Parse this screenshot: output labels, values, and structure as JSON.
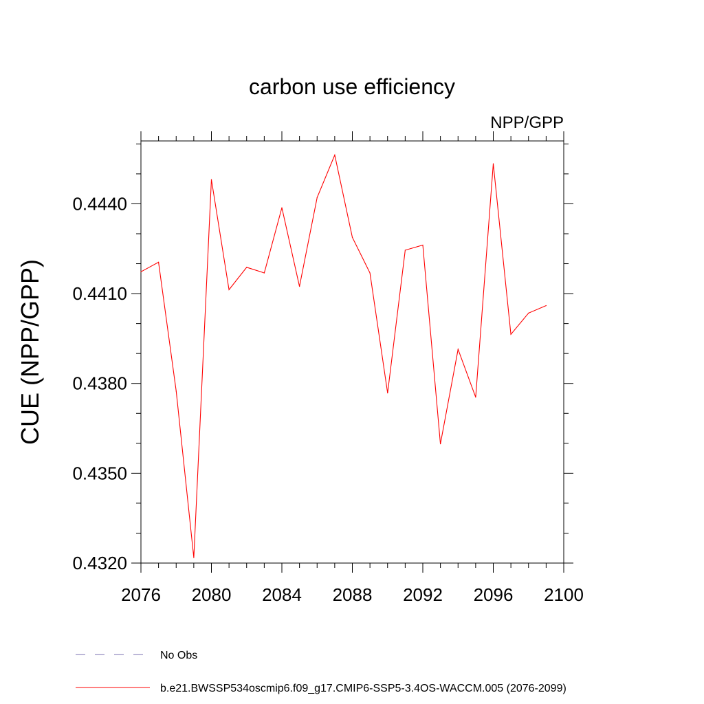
{
  "chart_data": {
    "type": "line",
    "title": "carbon use efficiency",
    "subtitle": "NPP/GPP",
    "xlabel": "",
    "ylabel": "CUE  (NPP/GPP)",
    "xlim": [
      2076,
      2100
    ],
    "ylim": [
      0.432,
      0.4461
    ],
    "x_ticks": [
      2076,
      2080,
      2084,
      2088,
      2092,
      2096,
      2100
    ],
    "x_tick_labels": [
      "2076",
      "2080",
      "2084",
      "2088",
      "2092",
      "2096",
      "2100"
    ],
    "y_ticks": [
      0.432,
      0.435,
      0.438,
      0.441,
      0.444
    ],
    "y_tick_labels": [
      "0.4320",
      "0.4350",
      "0.4380",
      "0.4410",
      "0.4440"
    ],
    "grid": false,
    "legend_position": "bottom",
    "series": [
      {
        "name": "b.e21.BWSSP534oscmip6.f09_g17.CMIP6-SSP5-3.4OS-WACCM.005 (2076-2099)",
        "color": "#ff0000",
        "style": "solid",
        "x": [
          2076,
          2077,
          2078,
          2079,
          2080,
          2081,
          2082,
          2083,
          2084,
          2085,
          2086,
          2087,
          2088,
          2089,
          2090,
          2091,
          2092,
          2093,
          2094,
          2095,
          2096,
          2097,
          2098,
          2099
        ],
        "y": [
          0.44173,
          0.44205,
          0.43774,
          0.43218,
          0.44481,
          0.44113,
          0.44188,
          0.44169,
          0.44387,
          0.44124,
          0.44421,
          0.44563,
          0.44288,
          0.44169,
          0.43768,
          0.44245,
          0.44262,
          0.43598,
          0.43914,
          0.43754,
          0.44534,
          0.43964,
          0.44035,
          0.4406
        ]
      }
    ],
    "legend": [
      {
        "label": "No Obs",
        "color": "#7a6fb0",
        "style": "dashed"
      },
      {
        "label": "b.e21.BWSSP534oscmip6.f09_g17.CMIP6-SSP5-3.4OS-WACCM.005 (2076-2099)",
        "color": "#ff0000",
        "style": "solid"
      }
    ]
  }
}
